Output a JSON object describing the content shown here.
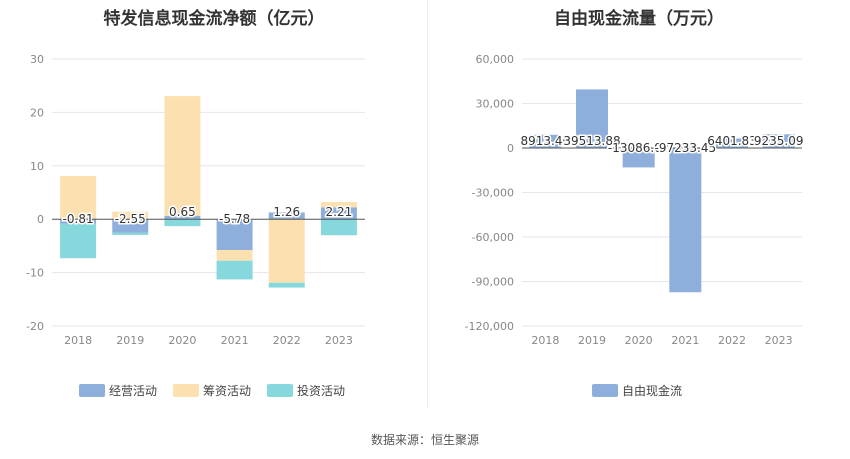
{
  "chart_data": [
    {
      "type": "bar",
      "stacked": true,
      "title": "特发信息现金流净额（亿元）",
      "categories": [
        "2018",
        "2019",
        "2020",
        "2021",
        "2022",
        "2023"
      ],
      "series": [
        {
          "name": "经营活动",
          "color": "#8eaedb",
          "values": [
            -0.81,
            -2.55,
            0.65,
            -5.78,
            1.26,
            2.21
          ]
        },
        {
          "name": "筹资活动",
          "color": "#fde0b0",
          "values": [
            8.1,
            1.4,
            22.4,
            -2.0,
            -11.9,
            1.0
          ]
        },
        {
          "name": "投资活动",
          "color": "#86d8dc",
          "values": [
            -6.5,
            -0.4,
            -1.3,
            -3.5,
            -0.9,
            -3.0
          ]
        }
      ],
      "data_labels": [
        "-0.81",
        "-2.55",
        "0.65",
        "-5.78",
        "1.26",
        "2.21"
      ],
      "ylim": [
        -20,
        30
      ],
      "yticks": [
        30,
        20,
        10,
        0,
        -10,
        -20
      ],
      "ytick_labels": [
        "30",
        "20",
        "10",
        "0",
        "-10",
        "-20"
      ],
      "grid": true,
      "legend_position": "bottom"
    },
    {
      "type": "bar",
      "title": "自由现金流量（万元）",
      "categories": [
        "2018",
        "2019",
        "2020",
        "2021",
        "2022",
        "2023"
      ],
      "series": [
        {
          "name": "自由现金流",
          "color": "#8eaedb",
          "values": [
            8913.46,
            39513.88,
            -13086.07,
            -97233.45,
            6401.83,
            9235.09
          ]
        }
      ],
      "data_labels": [
        "8913.46",
        "39513.88",
        "-13086.07",
        "-97233.45",
        "6401.83",
        "9235.09"
      ],
      "ylim": [
        -120000,
        60000
      ],
      "yticks": [
        60000,
        30000,
        0,
        -30000,
        -60000,
        -90000,
        -120000
      ],
      "ytick_labels": [
        "60,000",
        "30,000",
        "0",
        "-30,000",
        "-60,000",
        "-90,000",
        "-120,000"
      ],
      "grid": true,
      "legend_position": "bottom"
    }
  ],
  "source_text": "数据来源：恒生聚源"
}
